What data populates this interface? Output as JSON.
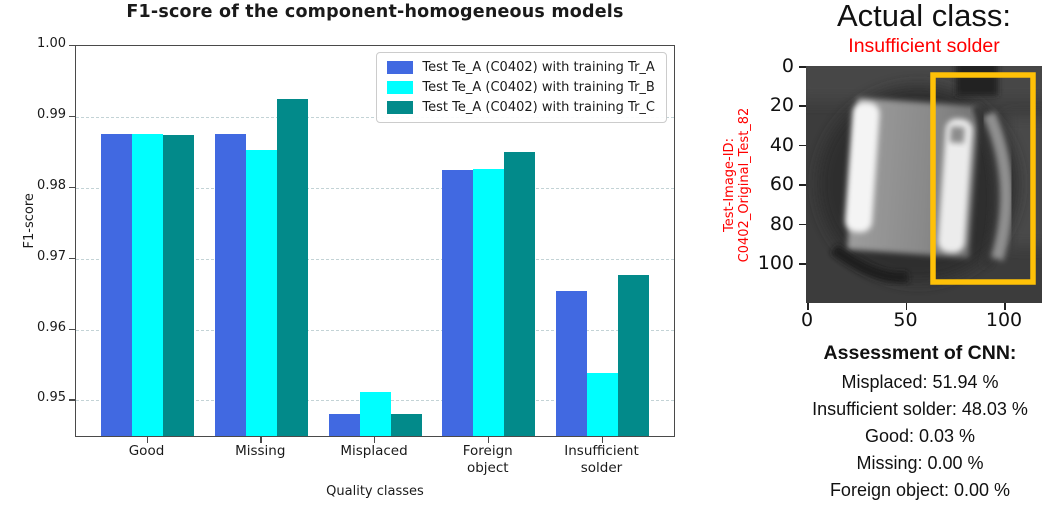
{
  "chart_data": {
    "type": "bar",
    "title": "F1-score of the component-homogeneous models",
    "xlabel": "Quality classes",
    "ylabel": "F1-score",
    "categories": [
      "Good",
      "Missing",
      "Misplaced",
      "Foreign object",
      "Insufficient solder"
    ],
    "category_lines": [
      [
        "Good"
      ],
      [
        "Missing"
      ],
      [
        "Misplaced"
      ],
      [
        "Foreign",
        "object"
      ],
      [
        "Insufficient",
        "solder"
      ]
    ],
    "series": [
      {
        "name": "Test Te_A (C0402) with training Tr_A",
        "color": "#4169E1",
        "values": [
          0.9875,
          0.9875,
          0.9478,
          0.9824,
          0.9652
        ]
      },
      {
        "name": "Test Te_A (C0402) with training Tr_B",
        "color": "#00FFFF",
        "values": [
          0.9875,
          0.9852,
          0.951,
          0.9826,
          0.9537
        ]
      },
      {
        "name": "Test Te_A (C0402) with training Tr_C",
        "color": "#028A8A",
        "values": [
          0.9874,
          0.9925,
          0.9478,
          0.985,
          0.9675
        ]
      }
    ],
    "ylim": [
      0.9447,
      1.0
    ],
    "yticks": [
      "1.00",
      "0.99",
      "0.98",
      "0.97",
      "0.96",
      "0.95"
    ],
    "grid": "horizontal-dashed",
    "legend_position": "upper-right"
  },
  "right_panel": {
    "title": "Actual class:",
    "subtitle": "Insufficient solder",
    "subtitle_color": "#FF0000",
    "image_id_line1": "Test-Image-ID:",
    "image_id_line2": "C0402_Original_Test_82",
    "image_yticks": [
      "0",
      "20",
      "40",
      "60",
      "80",
      "100"
    ],
    "image_xticks": [
      "0",
      "50",
      "100"
    ],
    "highlight_box_color": "#FFC107",
    "assessment_heading": "Assessment of CNN:",
    "assessment_lines": [
      "Misplaced: 51.94 %",
      "Insufficient solder: 48.03 %",
      "Good: 0.03 %",
      "Missing: 0.00 %",
      "Foreign object: 0.00 %"
    ]
  }
}
